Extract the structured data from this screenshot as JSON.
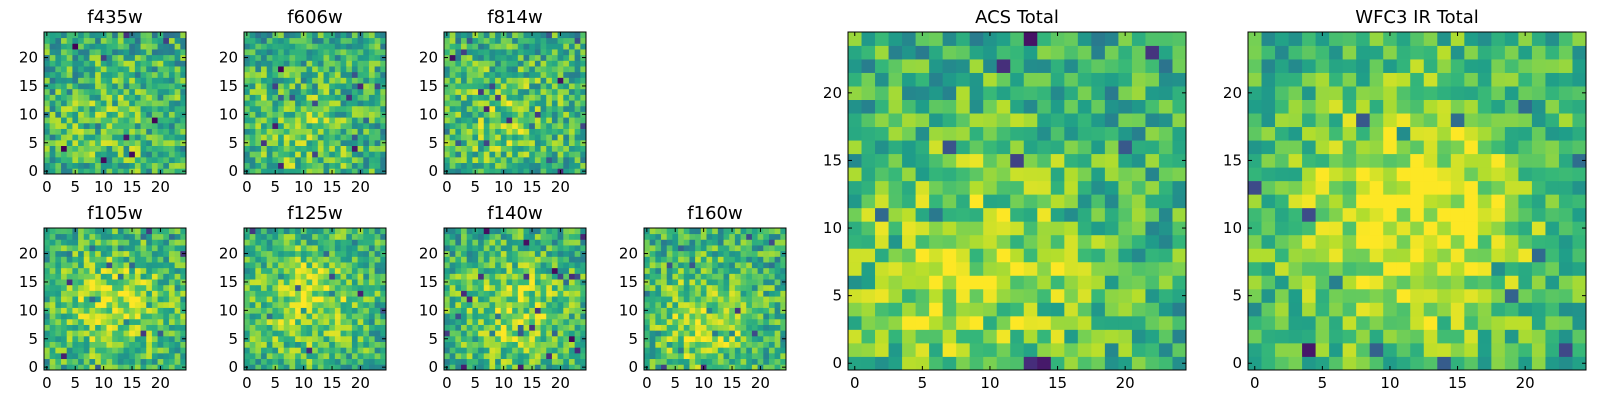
{
  "chart_data": [
    {
      "type": "heatmap",
      "title": "f435w",
      "xticks": [
        "0",
        "5",
        "10",
        "15",
        "20"
      ],
      "yticks": [
        "0",
        "5",
        "10",
        "15",
        "20"
      ],
      "xlim": [
        -0.5,
        24.5
      ],
      "ylim": [
        -0.5,
        24.5
      ],
      "grid_size": 25,
      "colormap": "viridis",
      "peak": [
        12,
        8
      ],
      "peak_strength": 0.25,
      "seed": 11
    },
    {
      "type": "heatmap",
      "title": "f606w",
      "xticks": [
        "0",
        "5",
        "10",
        "15",
        "20"
      ],
      "yticks": [
        "0",
        "5",
        "10",
        "15",
        "20"
      ],
      "xlim": [
        -0.5,
        24.5
      ],
      "ylim": [
        -0.5,
        24.5
      ],
      "grid_size": 25,
      "colormap": "viridis",
      "peak": [
        9,
        7
      ],
      "peak_strength": 0.35,
      "seed": 23
    },
    {
      "type": "heatmap",
      "title": "f814w",
      "xticks": [
        "0",
        "5",
        "10",
        "15",
        "20"
      ],
      "yticks": [
        "0",
        "5",
        "10",
        "15",
        "20"
      ],
      "xlim": [
        -0.5,
        24.5
      ],
      "ylim": [
        -0.5,
        24.5
      ],
      "grid_size": 25,
      "colormap": "viridis",
      "peak": [
        10,
        9
      ],
      "peak_strength": 0.35,
      "seed": 37
    },
    {
      "type": "heatmap",
      "title": "f105w",
      "xticks": [
        "0",
        "5",
        "10",
        "15",
        "20"
      ],
      "yticks": [
        "0",
        "5",
        "10",
        "15",
        "20"
      ],
      "xlim": [
        -0.5,
        24.5
      ],
      "ylim": [
        -0.5,
        24.5
      ],
      "grid_size": 25,
      "colormap": "viridis",
      "peak": [
        12,
        11
      ],
      "peak_strength": 0.55,
      "seed": 41
    },
    {
      "type": "heatmap",
      "title": "f125w",
      "xticks": [
        "0",
        "5",
        "10",
        "15",
        "20"
      ],
      "yticks": [
        "0",
        "5",
        "10",
        "15",
        "20"
      ],
      "xlim": [
        -0.5,
        24.5
      ],
      "ylim": [
        -0.5,
        24.5
      ],
      "grid_size": 25,
      "colormap": "viridis",
      "peak": [
        11,
        12
      ],
      "peak_strength": 0.55,
      "seed": 53
    },
    {
      "type": "heatmap",
      "title": "f140w",
      "xticks": [
        "0",
        "5",
        "10",
        "15",
        "20"
      ],
      "yticks": [
        "0",
        "5",
        "10",
        "15",
        "20"
      ],
      "xlim": [
        -0.5,
        24.5
      ],
      "ylim": [
        -0.5,
        24.5
      ],
      "grid_size": 25,
      "colormap": "viridis",
      "peak": [
        12,
        10
      ],
      "peak_strength": 0.5,
      "seed": 67
    },
    {
      "type": "heatmap",
      "title": "f160w",
      "xticks": [
        "0",
        "5",
        "10",
        "15",
        "20"
      ],
      "yticks": [
        "0",
        "5",
        "10",
        "15",
        "20"
      ],
      "xlim": [
        -0.5,
        24.5
      ],
      "ylim": [
        -0.5,
        24.5
      ],
      "grid_size": 25,
      "colormap": "viridis",
      "peak": [
        10,
        8
      ],
      "peak_strength": 0.5,
      "seed": 79
    },
    {
      "type": "heatmap",
      "title": "ACS Total",
      "xticks": [
        "0",
        "5",
        "10",
        "15",
        "20"
      ],
      "yticks": [
        "0",
        "5",
        "10",
        "15",
        "20"
      ],
      "xlim": [
        -0.5,
        24.5
      ],
      "ylim": [
        -0.5,
        24.5
      ],
      "grid_size": 25,
      "colormap": "viridis",
      "peak": [
        9,
        7
      ],
      "peak_strength": 0.55,
      "seed": 97
    },
    {
      "type": "heatmap",
      "title": "WFC3 IR Total",
      "xticks": [
        "0",
        "5",
        "10",
        "15",
        "20"
      ],
      "yticks": [
        "0",
        "5",
        "10",
        "15",
        "20"
      ],
      "xlim": [
        -0.5,
        24.5
      ],
      "ylim": [
        -0.5,
        24.5
      ],
      "grid_size": 25,
      "colormap": "viridis",
      "peak": [
        12,
        11
      ],
      "peak_strength": 0.8,
      "seed": 131
    }
  ]
}
